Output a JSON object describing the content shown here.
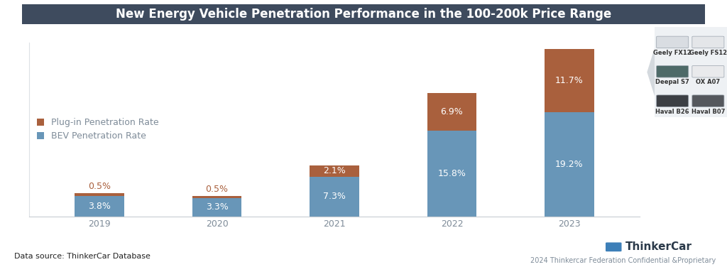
{
  "chart_data": {
    "type": "bar",
    "stacked": true,
    "title": "New Energy Vehicle Penetration Performance in the 100-200k Price Range",
    "categories": [
      "2019",
      "2020",
      "2021",
      "2022",
      "2023"
    ],
    "series": [
      {
        "name": "BEV Penetration Rate",
        "color": "#6896b8",
        "values": [
          3.8,
          3.3,
          7.3,
          15.8,
          19.2
        ],
        "value_labels": [
          "3.8%",
          "3.3%",
          "7.3%",
          "15.8%",
          "19.2%"
        ]
      },
      {
        "name": "Plug-in Penetration Rate",
        "color": "#a9603d",
        "values": [
          0.5,
          0.5,
          2.1,
          6.9,
          11.7
        ],
        "value_labels": [
          "0.5%",
          "0.5%",
          "2.1%",
          "6.9%",
          "11.7%"
        ]
      }
    ],
    "ylim": [
      0,
      32
    ],
    "yticks": [],
    "grid": false,
    "data_labels": true,
    "legend": "center left",
    "tick_labels": "x",
    "source": "Data source: ThinkerCar Database",
    "brand": "ThinkerCar",
    "footer": "2024 Thinkercar Federation Confidential &Proprietary",
    "models": [
      "Geely FX12",
      "Geely FS12",
      "Deepal S7",
      "OX A07",
      "Haval B26",
      "Haval B07"
    ]
  }
}
